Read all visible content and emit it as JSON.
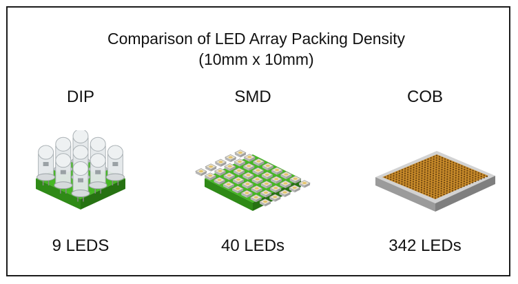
{
  "title": {
    "line1": "Comparison of LED Array Packing Density",
    "line2": "(10mm x 10mm)"
  },
  "panels": [
    {
      "label": "DIP",
      "count": "9 LEDS"
    },
    {
      "label": "SMD",
      "count": "40 LEDs"
    },
    {
      "label": "COB",
      "count": "342 LEDs"
    }
  ],
  "colors": {
    "pcb_green": "#3aa31e",
    "pcb_green_dark": "#2a7d14",
    "led_chip": "#c8c8c8",
    "cob_substrate": "#b8b8b8",
    "cob_phosphor": "#c78a2a"
  },
  "icons": [
    "dip-led-array-icon",
    "smd-led-array-icon",
    "cob-led-array-icon"
  ]
}
